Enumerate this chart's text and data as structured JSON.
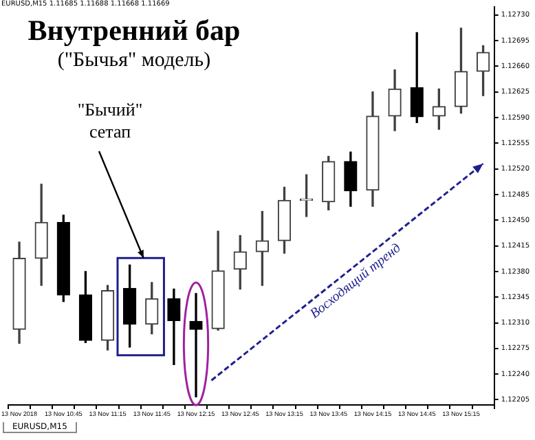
{
  "chart_data": {
    "type": "candlestick",
    "title": "Внутренний бар",
    "subtitle": "(\"Бычья\" модель)",
    "annotations": [
      "EURUSD,M15 1.11685 1.11688 1.11668 1.11669",
      "\"Бычий\" сетап",
      "Восходящий тренд",
      "EURUSD,M15"
    ],
    "categories": [
      "13 Nov 2018",
      null,
      "13 Nov 10:45",
      null,
      "13 Nov 11:15",
      null,
      "13 Nov 11:45",
      null,
      "13 Nov 12:15",
      null,
      "13 Nov 12:45",
      null,
      "13 Nov 13:15",
      null,
      "13 Nov 13:45",
      null,
      "13 Nov 14:15",
      null,
      "13 Nov 14:45",
      null,
      "13 Nov 15:15",
      null
    ],
    "ohlc": [
      [
        1.12301,
        1.1242,
        1.12282,
        1.12398
      ],
      [
        1.12398,
        1.12499,
        1.12361,
        1.12447
      ],
      [
        1.12447,
        1.12457,
        1.12339,
        1.12348
      ],
      [
        1.12348,
        1.1238,
        1.12283,
        1.12286
      ],
      [
        1.12286,
        1.12361,
        1.12273,
        1.12354
      ],
      [
        1.12357,
        1.12389,
        1.12277,
        1.12308
      ],
      [
        1.12308,
        1.12365,
        1.12295,
        1.12343
      ],
      [
        1.12343,
        1.12356,
        1.12253,
        1.12313
      ],
      [
        1.12312,
        1.1235,
        1.12209,
        1.12301
      ],
      [
        1.12302,
        1.12435,
        1.123,
        1.12381
      ],
      [
        1.12383,
        1.12429,
        1.12356,
        1.12407
      ],
      [
        1.12407,
        1.12462,
        1.12361,
        1.12422
      ],
      [
        1.12422,
        1.12495,
        1.12405,
        1.12477
      ],
      [
        1.12477,
        1.12512,
        1.12455,
        1.12477
      ],
      [
        1.12475,
        1.12537,
        1.12464,
        1.1253
      ],
      [
        1.1253,
        1.12543,
        1.12469,
        1.1249
      ],
      [
        1.12491,
        1.12625,
        1.12469,
        1.12592
      ],
      [
        1.12592,
        1.12655,
        1.12572,
        1.12629
      ],
      [
        1.12631,
        1.12706,
        1.12583,
        1.12591
      ],
      [
        1.12592,
        1.12629,
        1.12574,
        1.12605
      ],
      [
        1.12605,
        1.12712,
        1.12596,
        1.12653
      ],
      [
        1.12653,
        1.12688,
        1.1262,
        1.12679
      ]
    ],
    "ylim": [
      1.12198,
      1.12741
    ],
    "yticks": [
      {
        "value": 1.12205,
        "label": "1.12205"
      },
      {
        "value": 1.1224,
        "label": "1.12240"
      },
      {
        "value": 1.12275,
        "label": "1.12275"
      },
      {
        "value": 1.1231,
        "label": "1.12310"
      },
      {
        "value": 1.12345,
        "label": "1.12345"
      },
      {
        "value": 1.1238,
        "label": "1.12380"
      },
      {
        "value": 1.12415,
        "label": "1.12415"
      },
      {
        "value": 1.1245,
        "label": "1.12450"
      },
      {
        "value": 1.12485,
        "label": "1.12485"
      },
      {
        "value": 1.1252,
        "label": "1.12520"
      },
      {
        "value": 1.12555,
        "label": "1.12555"
      },
      {
        "value": 1.1259,
        "label": "1.12590"
      },
      {
        "value": 1.12625,
        "label": "1.12625"
      },
      {
        "value": 1.1266,
        "label": "1.12660"
      },
      {
        "value": 1.12695,
        "label": "1.12695"
      },
      {
        "value": 1.1273,
        "label": "1.12730"
      }
    ]
  }
}
